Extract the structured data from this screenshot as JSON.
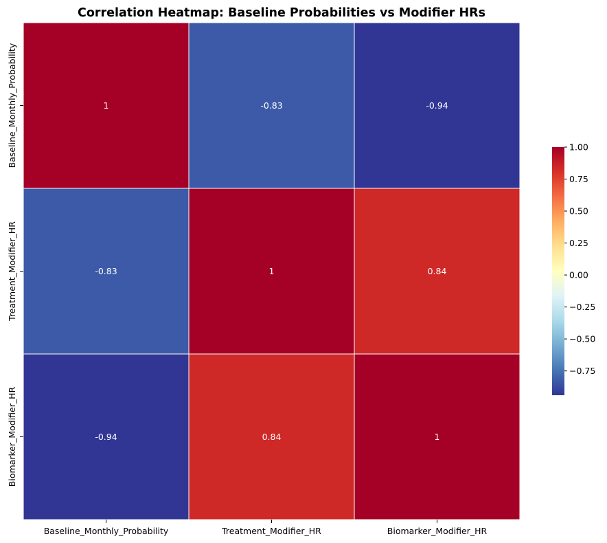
{
  "chart_data": {
    "type": "heatmap",
    "title": "Correlation Heatmap: Baseline Probabilities vs Modifier HRs",
    "rows": [
      "Baseline_Monthly_Probability",
      "Treatment_Modifier_HR",
      "Biomarker_Modifier_HR"
    ],
    "columns": [
      "Baseline_Monthly_Probability",
      "Treatment_Modifier_HR",
      "Biomarker_Modifier_HR"
    ],
    "values": [
      [
        1,
        -0.83,
        -0.94
      ],
      [
        -0.83,
        1,
        0.84
      ],
      [
        -0.94,
        0.84,
        1
      ]
    ],
    "cell_labels": [
      [
        "1",
        "-0.83",
        "-0.94"
      ],
      [
        "-0.83",
        "1",
        "0.84"
      ],
      [
        "-0.94",
        "0.84",
        "1"
      ]
    ],
    "colormap": "RdYlBu_r",
    "colorbar": {
      "vmin": -0.94,
      "vmax": 1.0,
      "ticks": [
        1.0,
        0.75,
        0.5,
        0.25,
        0.0,
        -0.25,
        -0.5,
        -0.75
      ],
      "tick_labels": [
        "1.00",
        "0.75",
        "0.50",
        "0.25",
        "0.00",
        "−0.25",
        "−0.50",
        "−0.75"
      ]
    },
    "colors": {
      "low": "#313695",
      "mid": "#ffffbf",
      "high": "#a50026",
      "cell_border": "#ffffff",
      "annotation_text": "#ffffff"
    }
  }
}
